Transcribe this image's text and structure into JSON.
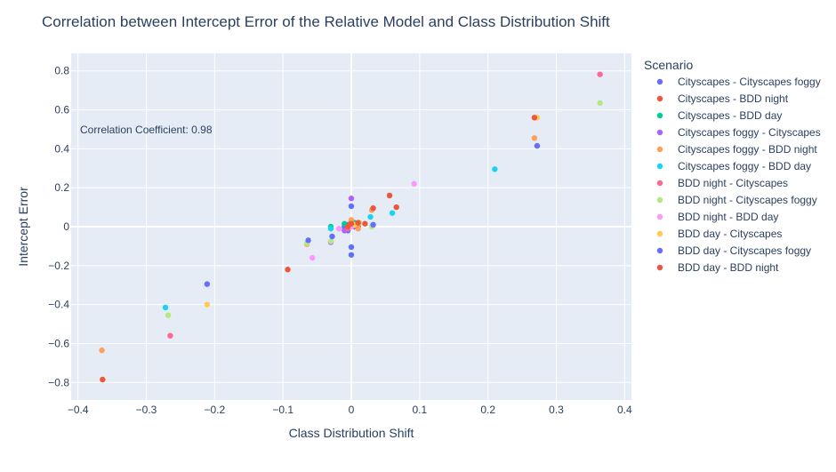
{
  "chart_data": {
    "type": "scatter",
    "title": "Correlation between Intercept Error of the Relative Model and Class Distribution Shift",
    "xlabel": "Class Distribution Shift",
    "ylabel": "Intercept Error",
    "xlim": [
      -0.41,
      0.41
    ],
    "ylim": [
      -0.89,
      0.89
    ],
    "xticks": [
      -0.4,
      -0.3,
      -0.2,
      -0.1,
      0,
      0.1,
      0.2,
      0.3,
      0.4
    ],
    "xtick_labels": [
      "−0.4",
      "−0.3",
      "−0.2",
      "−0.1",
      "0",
      "0.1",
      "0.2",
      "0.3",
      "0.4"
    ],
    "yticks": [
      -0.8,
      -0.6,
      -0.4,
      -0.2,
      0,
      0.2,
      0.4,
      0.6,
      0.8
    ],
    "ytick_labels": [
      "−0.8",
      "−0.6",
      "−0.4",
      "−0.2",
      "0",
      "0.2",
      "0.4",
      "0.6",
      "0.8"
    ],
    "grid": true,
    "plot_bgcolor": "#e5ecf6",
    "legend_title": "Scenario",
    "legend_position": "right",
    "annotation": "Correlation Coefficient: 0.98",
    "series": [
      {
        "name": "Cityscapes - Cityscapes foggy",
        "color": "#636efa",
        "points": [
          [
            0.0,
            0.105
          ],
          [
            -0.005,
            -0.02
          ],
          [
            0.0,
            0.02
          ],
          [
            -0.01,
            0.0
          ],
          [
            0.005,
            0.0
          ]
        ]
      },
      {
        "name": "Cityscapes - BDD night",
        "color": "#EF553B",
        "points": [
          [
            0.0,
            0.03
          ],
          [
            0.02,
            0.015
          ],
          [
            0.01,
            0.0
          ],
          [
            0.0,
            0.0
          ],
          [
            -0.005,
            0.01
          ]
        ]
      },
      {
        "name": "Cityscapes - BDD day",
        "color": "#00cc96",
        "points": [
          [
            -0.01,
            0.015
          ],
          [
            -0.03,
            0.0
          ],
          [
            0.0,
            0.01
          ],
          [
            0.005,
            0.02
          ]
        ]
      },
      {
        "name": "Cityscapes foggy - Cityscapes",
        "color": "#ab63fa",
        "points": [
          [
            0.0,
            0.145
          ],
          [
            -0.01,
            -0.02
          ],
          [
            0.005,
            0.005
          ],
          [
            -0.03,
            -0.08
          ]
        ]
      },
      {
        "name": "Cityscapes foggy - BDD night",
        "color": "#FFA15A",
        "points": [
          [
            0.268,
            0.455
          ],
          [
            -0.365,
            -0.635
          ],
          [
            0.0,
            0.035
          ],
          [
            0.01,
            -0.01
          ],
          [
            0.03,
            0.085
          ],
          [
            -0.065,
            -0.09
          ]
        ]
      },
      {
        "name": "Cityscapes foggy - BDD day",
        "color": "#19d3f3",
        "points": [
          [
            0.21,
            0.295
          ],
          [
            -0.272,
            -0.415
          ],
          [
            -0.03,
            -0.01
          ],
          [
            0.06,
            0.07
          ],
          [
            0.028,
            0.05
          ]
        ]
      },
      {
        "name": "BDD night - Cityscapes",
        "color": "#FF6692",
        "points": [
          [
            0.364,
            0.782
          ],
          [
            -0.265,
            -0.56
          ],
          [
            0.005,
            0.005
          ],
          [
            -0.005,
            -0.01
          ]
        ]
      },
      {
        "name": "BDD night - Cityscapes foggy",
        "color": "#B6E880",
        "points": [
          [
            0.364,
            0.635
          ],
          [
            -0.268,
            -0.455
          ],
          [
            -0.065,
            -0.085
          ],
          [
            -0.03,
            -0.075
          ],
          [
            0.012,
            0.02
          ],
          [
            0.03,
            0.0
          ]
        ]
      },
      {
        "name": "BDD night - BDD day",
        "color": "#FF97FF",
        "points": [
          [
            0.092,
            0.22
          ],
          [
            -0.057,
            -0.16
          ],
          [
            -0.018,
            -0.01
          ],
          [
            0.0,
            0.0
          ]
        ]
      },
      {
        "name": "BDD day - Cityscapes",
        "color": "#FECB52",
        "points": [
          [
            0.272,
            0.56
          ],
          [
            -0.211,
            -0.4
          ],
          [
            0.005,
            0.01
          ]
        ]
      },
      {
        "name": "BDD day - Cityscapes foggy",
        "color": "#636efa",
        "points": [
          [
            0.272,
            0.415
          ],
          [
            -0.211,
            -0.295
          ],
          [
            0.0,
            -0.145
          ],
          [
            0.0,
            -0.105
          ],
          [
            -0.063,
            -0.07
          ],
          [
            -0.028,
            -0.05
          ],
          [
            0.032,
            0.01
          ]
        ]
      },
      {
        "name": "BDD day - BDD night",
        "color": "#EF553B",
        "points": [
          [
            0.268,
            0.56
          ],
          [
            -0.364,
            -0.785
          ],
          [
            -0.093,
            -0.22
          ],
          [
            0.056,
            0.16
          ],
          [
            0.066,
            0.1
          ],
          [
            0.032,
            0.095
          ],
          [
            0.0,
            0.015
          ],
          [
            0.01,
            0.02
          ],
          [
            -0.005,
            0.0
          ]
        ]
      }
    ]
  }
}
